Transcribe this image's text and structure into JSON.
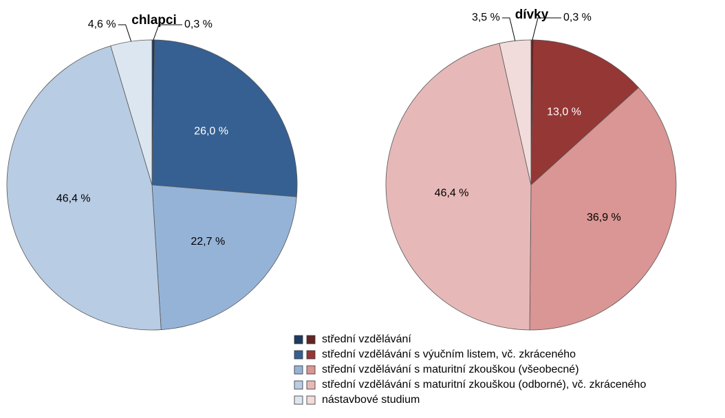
{
  "chart_data": [
    {
      "type": "pie",
      "title": "chlapci",
      "categories": [
        "střední vzdělávání",
        "střední vzdělávání s výučním listem, vč. zkráceného",
        "střední vzdělávání s maturitní zkouškou (všeobecné)",
        "střední vzdělávání s maturitní zkouškou (odborné), vč. zkráceného",
        "nástavbové studium"
      ],
      "values": [
        0.3,
        26.0,
        22.7,
        46.4,
        4.6
      ],
      "value_labels": [
        "0,3 %",
        "26,0 %",
        "22,7 %",
        "46,4 %",
        "4,6 %"
      ],
      "colors": [
        "#1f3a5f",
        "#366092",
        "#95b3d7",
        "#b8cce4",
        "#dce6f1"
      ]
    },
    {
      "type": "pie",
      "title": "dívky",
      "values": [
        0.3,
        13.0,
        36.9,
        46.4,
        3.5
      ],
      "value_labels": [
        "0,3 %",
        "13,0 %",
        "36,9 %",
        "46,4 %",
        "3,5 %"
      ],
      "colors": [
        "#632523",
        "#953735",
        "#d99694",
        "#e6b9b8",
        "#f2dcdb"
      ]
    }
  ]
}
